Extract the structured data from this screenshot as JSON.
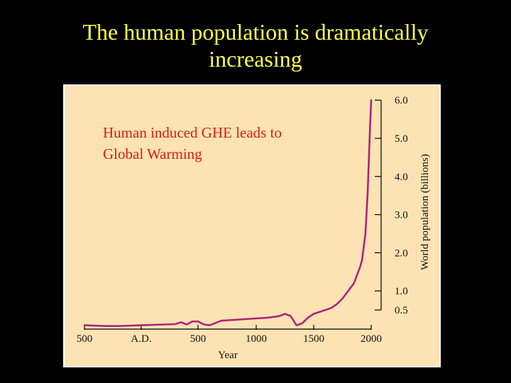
{
  "slide": {
    "title_line1": "The human population is dramatically",
    "title_line2": "increasing",
    "annotation_line1": "Human induced GHE leads to",
    "annotation_line2": "Global Warming"
  },
  "colors": {
    "background": "#000000",
    "title": "#ffff4d",
    "annotation": "#e0191b",
    "plot_background": "#fde3b4",
    "line": "#b0237a"
  },
  "chart_data": {
    "type": "line",
    "title": "",
    "xlabel": "Year",
    "ylabel": "World population (billions)",
    "x_ticks": [
      {
        "value": -500,
        "label": "500"
      },
      {
        "value": 0,
        "label": "A.D."
      },
      {
        "value": 500,
        "label": "500"
      },
      {
        "value": 1000,
        "label": "1000"
      },
      {
        "value": 1500,
        "label": "1500"
      },
      {
        "value": 2000,
        "label": "2000"
      }
    ],
    "y_ticks": [
      {
        "value": 0.5,
        "label": "0.5"
      },
      {
        "value": 1.0,
        "label": "1.0"
      },
      {
        "value": 2.0,
        "label": "2.0"
      },
      {
        "value": 3.0,
        "label": "3.0"
      },
      {
        "value": 4.0,
        "label": "4.0"
      },
      {
        "value": 5.0,
        "label": "5.0"
      },
      {
        "value": 6.0,
        "label": "6.0"
      }
    ],
    "xlim": [
      -500,
      2050
    ],
    "ylim": [
      0,
      6.2
    ],
    "grid": false,
    "series": [
      {
        "x": [
          -500,
          -400,
          -300,
          -200,
          0,
          200,
          300,
          350,
          400,
          450,
          500,
          550,
          600,
          700,
          800,
          900,
          1000,
          1100,
          1200,
          1250,
          1300,
          1350,
          1400,
          1450,
          1500,
          1600,
          1650,
          1700,
          1750,
          1800,
          1850,
          1900,
          1920,
          1950,
          1970,
          1990,
          2000
        ],
        "y": [
          0.1,
          0.09,
          0.08,
          0.08,
          0.1,
          0.12,
          0.13,
          0.18,
          0.12,
          0.2,
          0.2,
          0.12,
          0.1,
          0.22,
          0.24,
          0.26,
          0.28,
          0.3,
          0.34,
          0.4,
          0.34,
          0.1,
          0.15,
          0.3,
          0.4,
          0.5,
          0.55,
          0.65,
          0.8,
          1.0,
          1.2,
          1.6,
          1.8,
          2.5,
          3.6,
          5.3,
          6.0
        ]
      }
    ]
  }
}
